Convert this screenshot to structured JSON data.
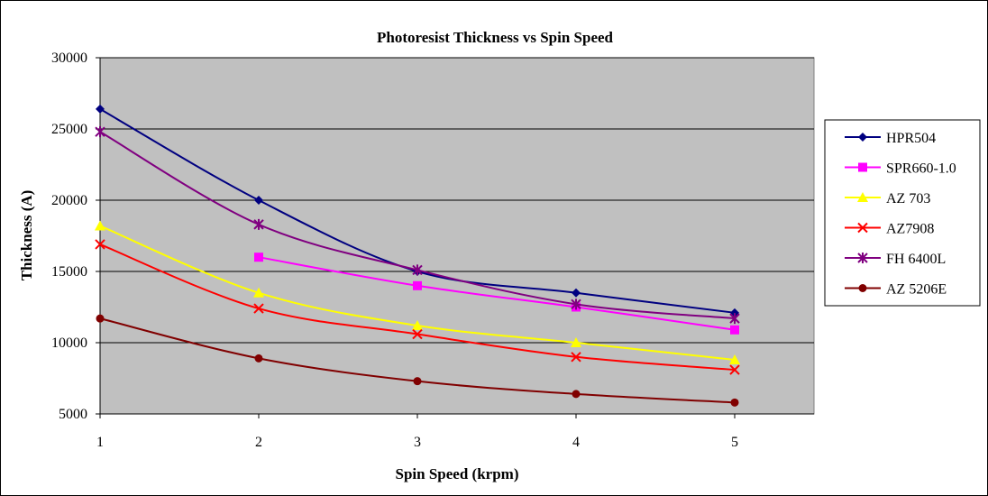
{
  "chart_data": {
    "type": "line",
    "title": "Photoresist Thickness vs Spin Speed",
    "xlabel": "Spin Speed (krpm)",
    "ylabel": "Thickness (A)",
    "x": [
      1,
      2,
      3,
      4,
      5
    ],
    "xlim": [
      1,
      5.5
    ],
    "ylim": [
      5000,
      30000
    ],
    "yticks": [
      5000,
      10000,
      15000,
      20000,
      25000,
      30000
    ],
    "xticks": [
      1,
      2,
      3,
      4,
      5
    ],
    "grid": "horizontal",
    "plot_background": "#c0c0c0",
    "legend_position": "right",
    "series": [
      {
        "name": "HPR504",
        "color": "#000080",
        "marker": "diamond",
        "values": [
          26400,
          20000,
          15000,
          13500,
          12100
        ]
      },
      {
        "name": "SPR660-1.0",
        "color": "#ff00ff",
        "marker": "square",
        "values": [
          null,
          16000,
          14000,
          12500,
          10900
        ]
      },
      {
        "name": "AZ 703",
        "color": "#ffff00",
        "marker": "triangle",
        "values": [
          18200,
          13500,
          11200,
          10000,
          8800
        ]
      },
      {
        "name": "AZ7908",
        "color": "#ff0000",
        "marker": "x",
        "values": [
          16900,
          12400,
          10600,
          9000,
          8100
        ]
      },
      {
        "name": "FH 6400L",
        "color": "#800080",
        "marker": "star",
        "values": [
          24800,
          18300,
          15100,
          12700,
          11700
        ]
      },
      {
        "name": "AZ 5206E",
        "color": "#800000",
        "marker": "circle",
        "values": [
          11700,
          8900,
          7300,
          6400,
          5800
        ]
      }
    ]
  }
}
